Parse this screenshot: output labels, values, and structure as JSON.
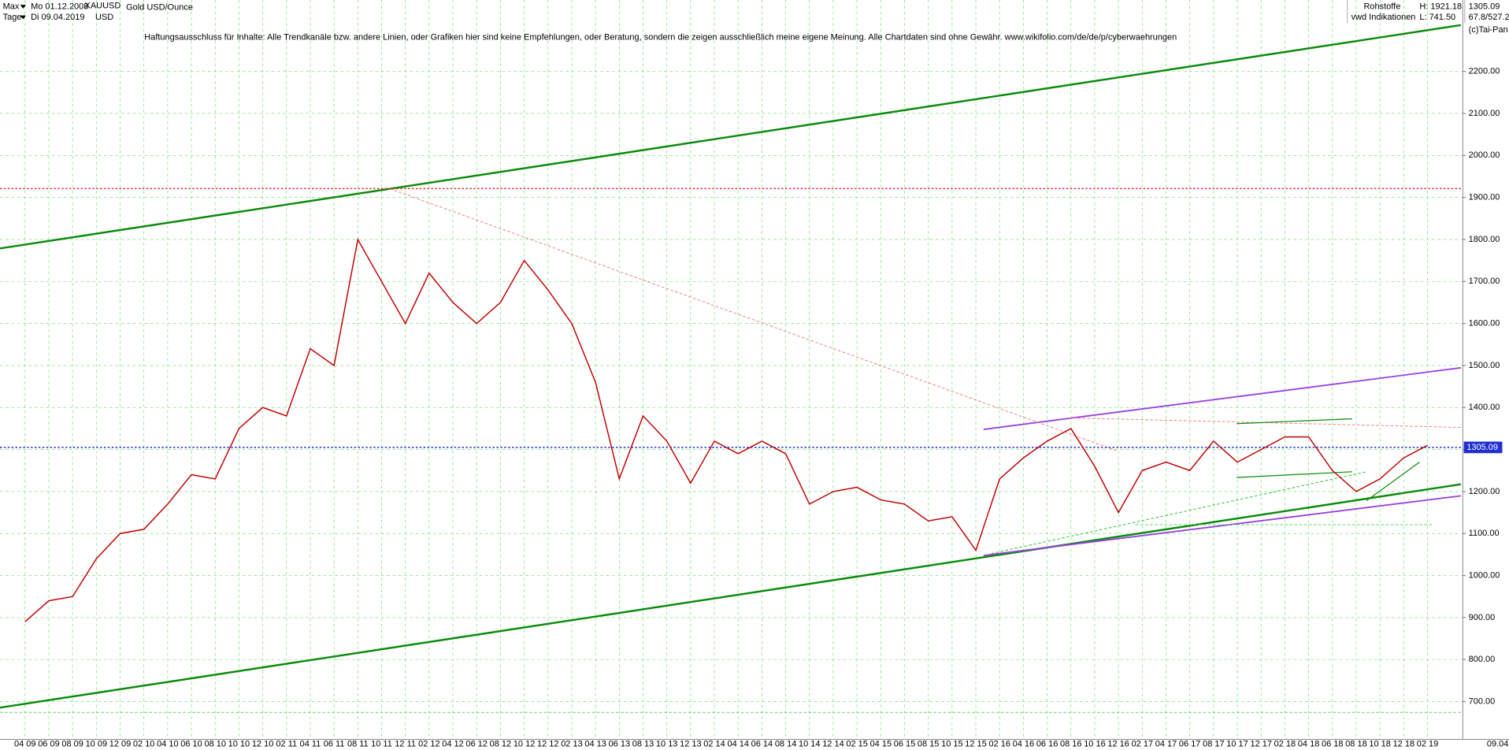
{
  "header": {
    "range": "Max",
    "start_date": "Mo 01.12.2008",
    "symbol": "XAUUSD",
    "instrument": "Gold USD/Ounce",
    "period": "Tage",
    "end_date": "Di 09.04.2019",
    "currency": "USD",
    "sector": "Rohstoffe",
    "high": "H: 1921.18",
    "source": "vwd Indikationen",
    "low": "L: 741.50",
    "ratio": "67.8/527.2",
    "copyright": "(c)Tai-Pan",
    "disclaimer": "Haftungsausschluss für Inhalte: Alle Trendkanäle bzw. andere Linien, oder Grafiken hier sind keine Empfehlungen, oder Beratung, sondern die zeigen ausschließlich meine eigene Meinung. Alle Chartdaten sind ohne Gewähr.  www.wikifolio.com/de/de/p/cyberwaehrungen"
  },
  "chart_data": {
    "type": "line",
    "categories": [
      "04 09",
      "06 09",
      "08 09",
      "10 09",
      "12 09",
      "02 10",
      "04 10",
      "06 10",
      "08 10",
      "10 10",
      "12 10",
      "02 11",
      "04 11",
      "06 11",
      "08 11",
      "10 11",
      "12 11",
      "02 12",
      "04 12",
      "06 12",
      "08 12",
      "10 12",
      "12 12",
      "02 13",
      "04 13",
      "06 13",
      "08 13",
      "10 13",
      "12 13",
      "02 14",
      "04 14",
      "06 14",
      "08 14",
      "10 14",
      "12 14",
      "02 15",
      "04 15",
      "06 15",
      "08 15",
      "10 15",
      "12 15",
      "02 16",
      "04 16",
      "06 16",
      "08 16",
      "10 16",
      "12 16",
      "02 17",
      "04 17",
      "06 17",
      "08 17",
      "10 17",
      "12 17",
      "02 18",
      "04 18",
      "06 18",
      "08 18",
      "10 18",
      "12 18",
      "02 19"
    ],
    "end_label": "09.04.19",
    "series": [
      {
        "name": "XAUUSD",
        "color": "#c00000",
        "values": [
          890,
          940,
          950,
          1040,
          1100,
          1110,
          1170,
          1240,
          1230,
          1350,
          1400,
          1380,
          1540,
          1500,
          1800,
          1700,
          1600,
          1720,
          1650,
          1600,
          1650,
          1750,
          1680,
          1600,
          1460,
          1230,
          1380,
          1320,
          1220,
          1320,
          1290,
          1320,
          1290,
          1170,
          1200,
          1210,
          1180,
          1170,
          1130,
          1140,
          1060,
          1230,
          1280,
          1320,
          1350,
          1260,
          1150,
          1250,
          1270,
          1250,
          1320,
          1270,
          1300,
          1330,
          1330,
          1250,
          1200,
          1230,
          1280,
          1310
        ]
      }
    ],
    "last": 1305.09,
    "hlines": [
      {
        "value": 1921.18,
        "color": "#e03030"
      },
      {
        "value": 1305.09,
        "color": "#2030d0"
      }
    ],
    "ylim": [
      610,
      2370
    ],
    "yticks": [
      {
        "value": 700,
        "label": "700.00"
      },
      {
        "value": 800,
        "label": "800.00"
      },
      {
        "value": 900,
        "label": "900.00"
      },
      {
        "value": 1000,
        "label": "1000.00"
      },
      {
        "value": 1100,
        "label": "1100.00"
      },
      {
        "value": 1200,
        "label": "1200.00"
      },
      {
        "value": 1300,
        "label": "1300.00"
      },
      {
        "value": 1400,
        "label": "1400.00"
      },
      {
        "value": 1500,
        "label": "1500.00"
      },
      {
        "value": 1600,
        "label": "1600.00"
      },
      {
        "value": 1700,
        "label": "1700.00"
      },
      {
        "value": 1800,
        "label": "1800.00"
      },
      {
        "value": 1900,
        "label": "1900.00"
      },
      {
        "value": 2000,
        "label": "2000.00"
      },
      {
        "value": 2100,
        "label": "2100.00"
      },
      {
        "value": 2200,
        "label": "2200.00"
      }
    ],
    "grid": true
  }
}
